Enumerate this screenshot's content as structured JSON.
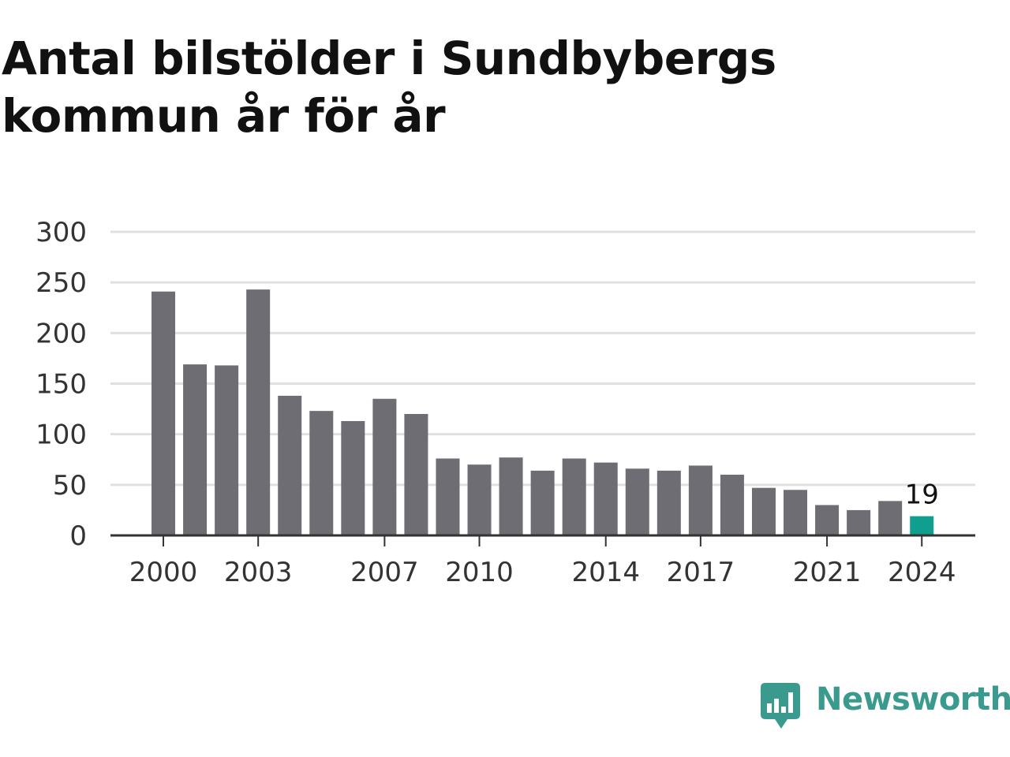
{
  "title": "Antal bilstölder i Sundbybergs kommun år för år",
  "brand": {
    "name": "Newsworthy",
    "color": "#3a9a8e"
  },
  "colors": {
    "bar": "#6e6d73",
    "highlight": "#109f8e",
    "grid": "#e0e0e0",
    "axis": "#333333"
  },
  "chart_data": {
    "type": "bar",
    "title": "Antal bilstölder i Sundbybergs kommun år för år",
    "categories": [
      "2000",
      "2001",
      "2002",
      "2003",
      "2004",
      "2005",
      "2006",
      "2007",
      "2008",
      "2009",
      "2010",
      "2011",
      "2012",
      "2013",
      "2014",
      "2015",
      "2016",
      "2017",
      "2018",
      "2019",
      "2020",
      "2021",
      "2022",
      "2023",
      "2024"
    ],
    "values": [
      241,
      169,
      168,
      243,
      138,
      123,
      113,
      135,
      120,
      76,
      70,
      77,
      64,
      76,
      72,
      66,
      64,
      69,
      60,
      47,
      45,
      30,
      25,
      34,
      19
    ],
    "xticks": [
      "2000",
      "2003",
      "2007",
      "2010",
      "2014",
      "2017",
      "2021",
      "2024"
    ],
    "yticks": [
      0,
      50,
      100,
      150,
      200,
      250,
      300
    ],
    "ylim": [
      0,
      300
    ],
    "highlight": {
      "category": "2024",
      "label": "19"
    },
    "xlabel": "",
    "ylabel": "",
    "grid": true
  }
}
